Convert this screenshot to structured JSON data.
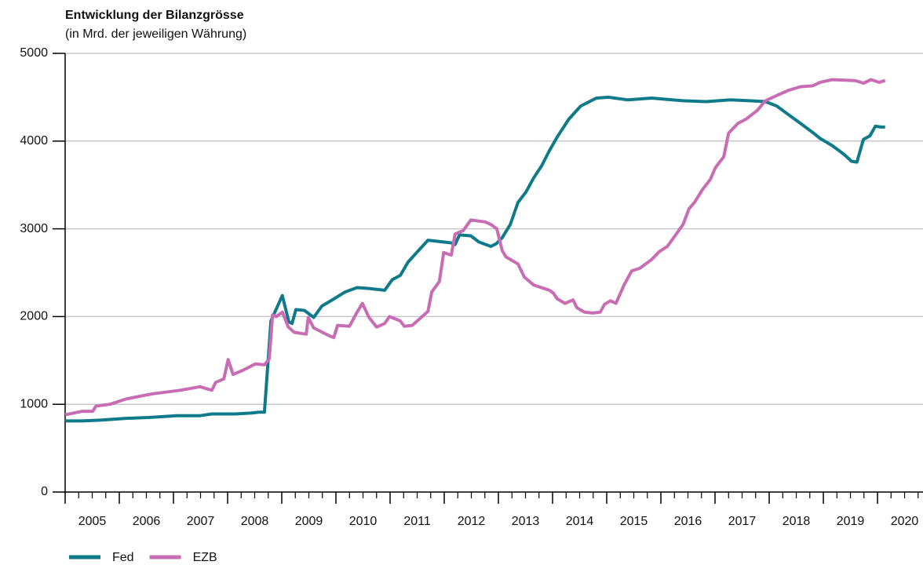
{
  "chart_data": {
    "type": "line",
    "title": "Entwicklung der Bilanzgrösse",
    "subtitle": "(in Mrd. der jeweiligen Währung)",
    "xlim": [
      2005,
      2020.84
    ],
    "xticks": [
      2005,
      2006,
      2007,
      2008,
      2009,
      2010,
      2011,
      2012,
      2013,
      2014,
      2015,
      2016,
      2017,
      2018,
      2019,
      2020
    ],
    "ylim": [
      0,
      5000
    ],
    "yticks": [
      0,
      1000,
      2000,
      3000,
      4000,
      5000
    ],
    "grid": true,
    "legend": "bottom-left",
    "series": [
      {
        "name": "Fed",
        "color": "#0f7b8a",
        "x": [
          2005.0,
          2005.32,
          2005.68,
          2006.12,
          2006.55,
          2007.06,
          2007.49,
          2007.71,
          2008.14,
          2008.43,
          2008.58,
          2008.68,
          2008.8,
          2009.01,
          2009.13,
          2009.19,
          2009.26,
          2009.42,
          2009.59,
          2009.74,
          2009.96,
          2010.17,
          2010.39,
          2010.61,
          2010.9,
          2011.04,
          2011.19,
          2011.33,
          2011.55,
          2011.7,
          2012.13,
          2012.2,
          2012.28,
          2012.49,
          2012.64,
          2012.86,
          2012.96,
          2013.07,
          2013.22,
          2013.36,
          2013.51,
          2013.65,
          2013.8,
          2013.94,
          2014.09,
          2014.3,
          2014.52,
          2014.81,
          2015.03,
          2015.39,
          2015.83,
          2016.41,
          2016.84,
          2017.28,
          2017.64,
          2017.93,
          2018.14,
          2018.36,
          2018.58,
          2018.8,
          2018.94,
          2019.16,
          2019.38,
          2019.52,
          2019.62,
          2019.74,
          2019.86,
          2019.96,
          2020.06,
          2020.14
        ],
        "values": [
          810,
          810,
          820,
          840,
          850,
          870,
          870,
          890,
          890,
          900,
          910,
          910,
          1950,
          2240,
          1940,
          1920,
          2080,
          2070,
          1990,
          2120,
          2200,
          2280,
          2330,
          2320,
          2300,
          2420,
          2470,
          2620,
          2770,
          2870,
          2840,
          2820,
          2930,
          2920,
          2850,
          2800,
          2830,
          2900,
          3050,
          3300,
          3420,
          3580,
          3720,
          3890,
          4050,
          4250,
          4400,
          4490,
          4500,
          4470,
          4490,
          4460,
          4450,
          4470,
          4460,
          4450,
          4400,
          4300,
          4200,
          4100,
          4030,
          3950,
          3850,
          3770,
          3760,
          4020,
          4060,
          4170,
          4160,
          4160
        ]
      },
      {
        "name": "EZB",
        "color": "#c86db3",
        "x": [
          2005.0,
          2005.32,
          2005.51,
          2005.57,
          2005.83,
          2006.12,
          2006.45,
          2006.62,
          2007.13,
          2007.49,
          2007.71,
          2007.78,
          2007.93,
          2008.01,
          2008.1,
          2008.29,
          2008.51,
          2008.68,
          2008.77,
          2008.83,
          2008.9,
          2009.01,
          2009.12,
          2009.23,
          2009.45,
          2009.49,
          2009.59,
          2009.88,
          2009.96,
          2010.03,
          2010.25,
          2010.39,
          2010.49,
          2010.61,
          2010.75,
          2010.9,
          2010.99,
          2011.19,
          2011.26,
          2011.41,
          2011.7,
          2011.77,
          2011.91,
          2011.99,
          2012.13,
          2012.2,
          2012.35,
          2012.49,
          2012.75,
          2012.86,
          2012.97,
          2013.07,
          2013.14,
          2013.36,
          2013.48,
          2013.65,
          2013.94,
          2014.01,
          2014.09,
          2014.23,
          2014.38,
          2014.45,
          2014.59,
          2014.74,
          2014.88,
          2014.96,
          2015.07,
          2015.17,
          2015.32,
          2015.46,
          2015.61,
          2015.83,
          2015.97,
          2016.12,
          2016.26,
          2016.41,
          2016.52,
          2016.62,
          2016.77,
          2016.91,
          2017.01,
          2017.16,
          2017.25,
          2017.42,
          2017.57,
          2017.78,
          2017.93,
          2018.14,
          2018.36,
          2018.58,
          2018.8,
          2018.94,
          2019.16,
          2019.59,
          2019.74,
          2019.88,
          2020.03,
          2020.14
        ],
        "values": [
          880,
          920,
          920,
          980,
          1000,
          1060,
          1100,
          1120,
          1160,
          1200,
          1160,
          1250,
          1290,
          1510,
          1340,
          1390,
          1460,
          1450,
          1520,
          2020,
          2000,
          2050,
          1880,
          1820,
          1800,
          1990,
          1870,
          1780,
          1760,
          1900,
          1890,
          2050,
          2150,
          1990,
          1880,
          1920,
          2000,
          1950,
          1890,
          1900,
          2060,
          2280,
          2400,
          2730,
          2700,
          2940,
          2980,
          3100,
          3080,
          3050,
          3000,
          2750,
          2680,
          2600,
          2450,
          2360,
          2300,
          2270,
          2200,
          2150,
          2190,
          2100,
          2050,
          2040,
          2050,
          2140,
          2180,
          2150,
          2360,
          2520,
          2550,
          2650,
          2740,
          2800,
          2920,
          3050,
          3230,
          3300,
          3450,
          3560,
          3700,
          3820,
          4090,
          4200,
          4250,
          4350,
          4460,
          4520,
          4580,
          4620,
          4630,
          4670,
          4700,
          4690,
          4660,
          4700,
          4670,
          4690
        ]
      }
    ]
  }
}
